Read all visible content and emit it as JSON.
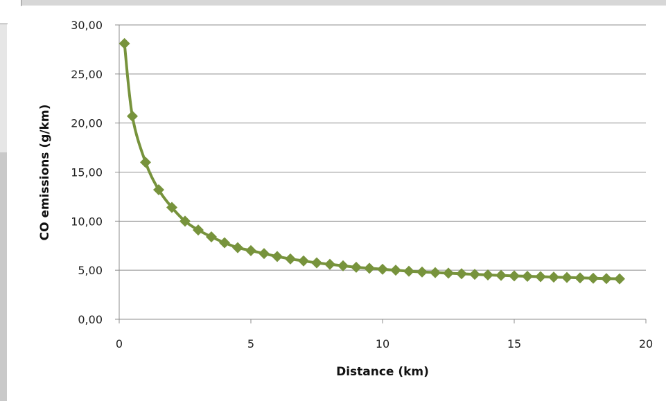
{
  "chart_data": {
    "type": "line",
    "xlabel": "Distance  (km)",
    "ylabel": "CO emissions (g/km)",
    "xlim": [
      0,
      20
    ],
    "ylim": [
      0,
      30
    ],
    "x_ticks": [
      "0",
      "5",
      "10",
      "15",
      "20"
    ],
    "y_ticks": [
      "0,00",
      "5,00",
      "10,00",
      "15,00",
      "20,00",
      "25,00",
      "30,00"
    ],
    "grid": "horizontal",
    "legend": "none",
    "marker": "diamond",
    "line_color": "#77933c",
    "series": [
      {
        "x": [
          0.2,
          0.5,
          1.0,
          1.5,
          2.0,
          2.5,
          3.0,
          3.5,
          4.0,
          4.5,
          5.0,
          5.5,
          6.0,
          6.5,
          7.0,
          7.5,
          8.0,
          8.5,
          9.0,
          9.5,
          10.0,
          10.5,
          11.0,
          11.5,
          12.0,
          12.5,
          13.0,
          13.5,
          14.0,
          14.5,
          15.0,
          15.5,
          16.0,
          16.5,
          17.0,
          17.5,
          18.0,
          18.5,
          19.0
        ],
        "y": [
          28.1,
          20.7,
          16.0,
          13.2,
          11.4,
          10.0,
          9.1,
          8.4,
          7.8,
          7.3,
          7.0,
          6.7,
          6.4,
          6.15,
          5.95,
          5.75,
          5.6,
          5.45,
          5.3,
          5.2,
          5.1,
          5.0,
          4.9,
          4.82,
          4.76,
          4.7,
          4.64,
          4.58,
          4.52,
          4.47,
          4.42,
          4.38,
          4.34,
          4.3,
          4.26,
          4.22,
          4.18,
          4.15,
          4.12
        ]
      }
    ]
  }
}
